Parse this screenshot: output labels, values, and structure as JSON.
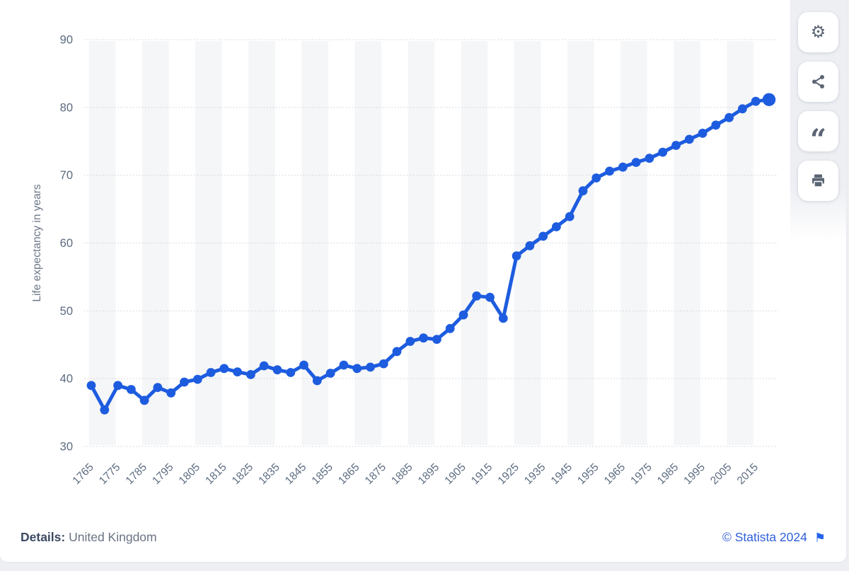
{
  "chart_data": {
    "type": "line",
    "title": "",
    "ylabel": "Life expectancy in years",
    "xlabel": "",
    "ylim": [
      30,
      90
    ],
    "y_ticks": [
      30,
      40,
      50,
      60,
      70,
      80,
      90
    ],
    "x_tick_labels": [
      "1765",
      "1775",
      "1785",
      "1795",
      "1805",
      "1815",
      "1825",
      "1835",
      "1845",
      "1855",
      "1865",
      "1875",
      "1885",
      "1895",
      "1905",
      "1915",
      "1925",
      "1935",
      "1945",
      "1955",
      "1965",
      "1975",
      "1985",
      "1995",
      "2005",
      "2015"
    ],
    "grid": "horizontal-dotted",
    "legend": "none",
    "line_color": "#1d5cdf",
    "marker": "circle",
    "x": [
      1765,
      1770,
      1775,
      1780,
      1785,
      1790,
      1795,
      1800,
      1805,
      1810,
      1815,
      1820,
      1825,
      1830,
      1835,
      1840,
      1845,
      1850,
      1855,
      1860,
      1865,
      1870,
      1875,
      1880,
      1885,
      1890,
      1895,
      1900,
      1905,
      1910,
      1915,
      1920,
      1925,
      1930,
      1935,
      1940,
      1945,
      1950,
      1955,
      1960,
      1965,
      1970,
      1975,
      1980,
      1985,
      1990,
      1995,
      2000,
      2005,
      2010,
      2015,
      2020
    ],
    "values": [
      39.0,
      35.4,
      39.0,
      38.4,
      36.8,
      38.7,
      37.9,
      39.5,
      39.9,
      40.9,
      41.5,
      41.0,
      40.6,
      41.9,
      41.3,
      40.9,
      42.0,
      39.7,
      40.8,
      42.0,
      41.5,
      41.7,
      42.2,
      44.0,
      45.5,
      46.0,
      45.8,
      47.4,
      49.4,
      52.2,
      52.0,
      48.9,
      58.1,
      59.6,
      61.0,
      62.4,
      63.9,
      67.7,
      69.6,
      70.6,
      71.2,
      71.9,
      72.5,
      73.4,
      74.4,
      75.3,
      76.2,
      77.4,
      78.5,
      79.8,
      80.9,
      81.15
    ]
  },
  "toolbar": {
    "gear_glyph": "⚙",
    "quote_glyph": "“",
    "buttons": [
      "settings",
      "share",
      "cite",
      "print"
    ]
  },
  "footer": {
    "details_label": "Details:",
    "details_value": "United Kingdom",
    "copyright": "© Statista 2024",
    "flag_glyph": "⚑"
  },
  "colors": {
    "line": "#1d5cdf",
    "stripe": "#f5f6f8",
    "grid": "#cdd2da",
    "tick_text": "#5c6b80",
    "icon": "#5b6574",
    "copyright_blue": "#2e5ed9",
    "page_background": "#edeff3"
  }
}
